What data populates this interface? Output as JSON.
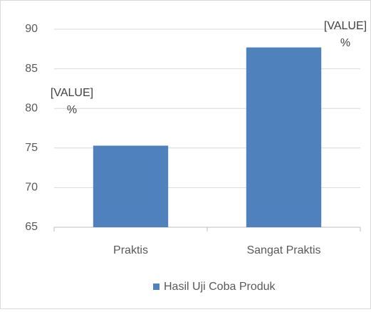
{
  "chart_data": {
    "type": "bar",
    "categories": [
      "Praktis",
      "Sangat Praktis"
    ],
    "series": [
      {
        "name": "Hasil Uji Coba Produk",
        "color": "#4f81bd",
        "values": [
          75.3,
          87.7
        ],
        "value_labels": [
          "[VALUE]\n%",
          "[VALUE]\n%"
        ]
      }
    ],
    "ylim": [
      65,
      90
    ],
    "yticks": [
      65,
      70,
      75,
      80,
      85,
      90
    ],
    "grid": true,
    "legend": "bottom"
  }
}
